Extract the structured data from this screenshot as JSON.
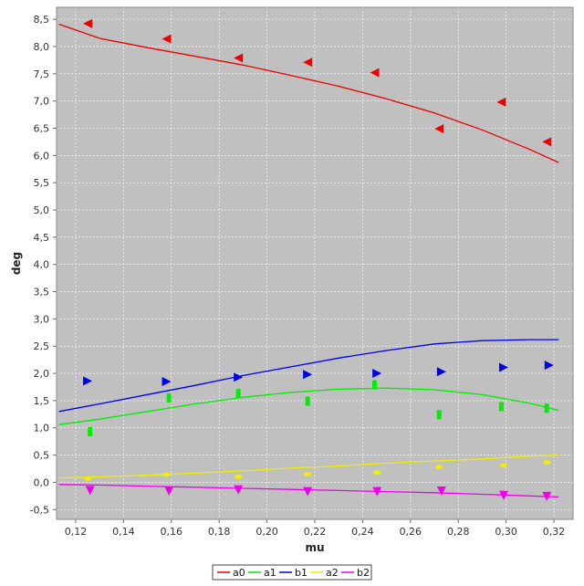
{
  "chart_data": {
    "type": "scatter",
    "xlabel": "mu",
    "ylabel": "deg",
    "xlim": [
      0.112,
      0.328
    ],
    "ylim": [
      -0.68,
      8.72
    ],
    "xticks": [
      0.12,
      0.14,
      0.16,
      0.18,
      0.2,
      0.22,
      0.24,
      0.26,
      0.28,
      0.3,
      0.32
    ],
    "xtick_labels": [
      "0,12",
      "0,14",
      "0,16",
      "0,18",
      "0,20",
      "0,22",
      "0,24",
      "0,26",
      "0,28",
      "0,30",
      "0,32"
    ],
    "yticks": [
      -0.5,
      0.0,
      0.5,
      1.0,
      1.5,
      2.0,
      2.5,
      3.0,
      3.5,
      4.0,
      4.5,
      5.0,
      5.5,
      6.0,
      6.5,
      7.0,
      7.5,
      8.0,
      8.5
    ],
    "ytick_labels": [
      "-0,5",
      "0,0",
      "0,5",
      "1,0",
      "1,5",
      "2,0",
      "2,5",
      "3,0",
      "3,5",
      "4,0",
      "4,5",
      "5,0",
      "5,5",
      "6,0",
      "6,5",
      "7,0",
      "7,5",
      "8,0",
      "8,5"
    ],
    "grid": true,
    "plot_background": "#c0c0c0",
    "legend_position": "bottom-center",
    "series": [
      {
        "name": "a0",
        "color": "#ee0000",
        "marker": "triangle-left",
        "points_x": [
          0.125,
          0.158,
          0.188,
          0.217,
          0.245,
          0.272,
          0.298,
          0.317
        ],
        "points_y": [
          8.42,
          8.14,
          7.79,
          7.71,
          7.52,
          6.49,
          6.98,
          6.25
        ],
        "curve_x": [
          0.113,
          0.13,
          0.15,
          0.17,
          0.19,
          0.21,
          0.23,
          0.25,
          0.27,
          0.29,
          0.31,
          0.322
        ],
        "curve_y": [
          8.41,
          8.15,
          7.98,
          7.82,
          7.66,
          7.47,
          7.27,
          7.04,
          6.78,
          6.47,
          6.11,
          5.87
        ]
      },
      {
        "name": "a1",
        "color": "#00ee00",
        "marker": "bar",
        "points_x": [
          0.126,
          0.159,
          0.188,
          0.217,
          0.245,
          0.272,
          0.298,
          0.317
        ],
        "points_y": [
          0.93,
          1.55,
          1.63,
          1.49,
          1.79,
          1.24,
          1.39,
          1.36
        ],
        "curve_x": [
          0.113,
          0.13,
          0.15,
          0.17,
          0.19,
          0.21,
          0.23,
          0.25,
          0.27,
          0.29,
          0.31,
          0.322
        ],
        "curve_y": [
          1.06,
          1.16,
          1.3,
          1.44,
          1.56,
          1.65,
          1.71,
          1.73,
          1.7,
          1.61,
          1.45,
          1.32
        ]
      },
      {
        "name": "b1",
        "color": "#0000ee",
        "marker": "triangle-right",
        "points_x": [
          0.125,
          0.158,
          0.188,
          0.217,
          0.246,
          0.273,
          0.299,
          0.318
        ],
        "points_y": [
          1.86,
          1.85,
          1.93,
          1.98,
          2.0,
          2.03,
          2.11,
          2.15
        ],
        "curve_x": [
          0.113,
          0.13,
          0.15,
          0.17,
          0.19,
          0.21,
          0.23,
          0.25,
          0.27,
          0.29,
          0.31,
          0.322
        ],
        "curve_y": [
          1.3,
          1.44,
          1.61,
          1.78,
          1.96,
          2.12,
          2.28,
          2.42,
          2.54,
          2.6,
          2.62,
          2.62
        ]
      },
      {
        "name": "a2",
        "color": "#eeee00",
        "marker": "ellipse",
        "points_x": [
          0.125,
          0.158,
          0.188,
          0.217,
          0.246,
          0.272,
          0.299,
          0.317
        ],
        "points_y": [
          0.07,
          0.14,
          0.1,
          0.15,
          0.18,
          0.28,
          0.31,
          0.37
        ],
        "curve_x": [
          0.113,
          0.13,
          0.15,
          0.17,
          0.19,
          0.21,
          0.23,
          0.25,
          0.27,
          0.29,
          0.31,
          0.322
        ],
        "curve_y": [
          0.08,
          0.1,
          0.13,
          0.17,
          0.21,
          0.26,
          0.3,
          0.35,
          0.39,
          0.43,
          0.48,
          0.5
        ]
      },
      {
        "name": "b2",
        "color": "#ee00ee",
        "marker": "triangle-down",
        "points_x": [
          0.126,
          0.159,
          0.188,
          0.217,
          0.246,
          0.273,
          0.299,
          0.317
        ],
        "points_y": [
          -0.15,
          -0.16,
          -0.14,
          -0.17,
          -0.17,
          -0.16,
          -0.24,
          -0.26
        ],
        "curve_x": [
          0.113,
          0.13,
          0.15,
          0.17,
          0.19,
          0.21,
          0.23,
          0.25,
          0.27,
          0.29,
          0.31,
          0.322
        ],
        "curve_y": [
          -0.04,
          -0.05,
          -0.07,
          -0.09,
          -0.11,
          -0.13,
          -0.15,
          -0.17,
          -0.19,
          -0.22,
          -0.25,
          -0.27
        ]
      }
    ]
  }
}
